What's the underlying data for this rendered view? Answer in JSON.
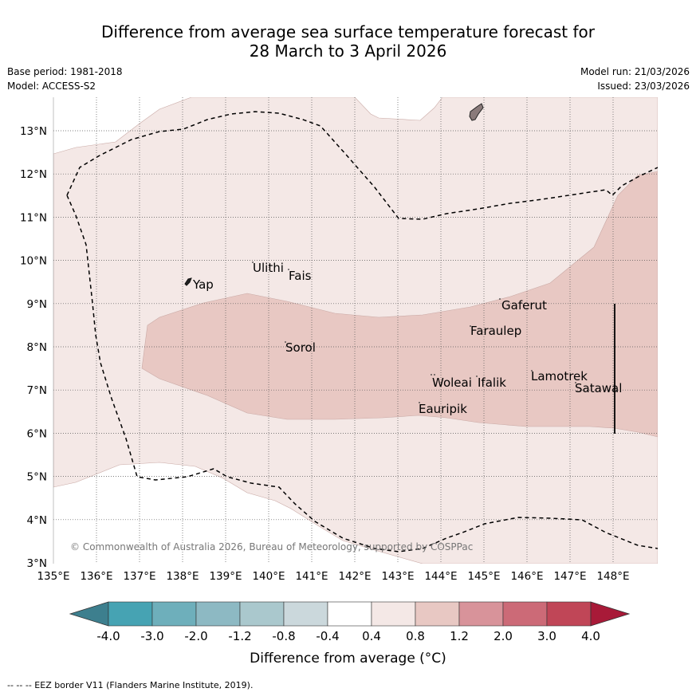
{
  "title": {
    "line1": "Difference from average sea surface temperature forecast for",
    "line2": "28 March to 3 April 2026"
  },
  "meta": {
    "base_period": "Base period: 1981-2018",
    "model": "Model: ACCESS-S2",
    "model_run": "Model run: 21/03/2026",
    "issued": "Issued: 23/03/2026"
  },
  "map": {
    "lat_labels": [
      "13°N",
      "12°N",
      "11°N",
      "10°N",
      "9°N",
      "8°N",
      "7°N",
      "6°N",
      "5°N",
      "4°N",
      "3°N"
    ],
    "lon_labels": [
      "135°E",
      "136°E",
      "137°E",
      "138°E",
      "139°E",
      "140°E",
      "141°E",
      "142°E",
      "143°E",
      "144°E",
      "145°E",
      "146°E",
      "147°E",
      "148°E"
    ],
    "places": [
      "Ulithi",
      "Fais",
      "Yap",
      "Gaferut",
      "Faraulep",
      "Sorol",
      "Lamotrek",
      "Woleai",
      "Ifalik",
      "Satawal",
      "Eauripik"
    ],
    "copyright": "© Commonwealth of Australia 2026, Bureau of Meteorology, supported by COSPPac",
    "colors": {
      "band_0_4_0_8": "#f4e8e6",
      "band_0_8_1_2": "#e8c8c3",
      "land": "#8a7a7a"
    }
  },
  "colorbar": {
    "ticks": [
      "-4.0",
      "-3.0",
      "-2.0",
      "-1.2",
      "-0.8",
      "-0.4",
      "0.4",
      "0.8",
      "1.2",
      "2.0",
      "3.0",
      "4.0"
    ],
    "colors": [
      "#3d7f8e",
      "#46a3b3",
      "#6eafbb",
      "#8db9c3",
      "#aac8cd",
      "#cbd8dc",
      "#ffffff",
      "#f4e8e6",
      "#e8c8c3",
      "#d8939a",
      "#cc6a77",
      "#c04657",
      "#a81a38"
    ],
    "label": "Difference from average (°C)"
  },
  "footnote": "--  --  -- EEZ border V11 (Flanders Marine Institute, 2019)."
}
